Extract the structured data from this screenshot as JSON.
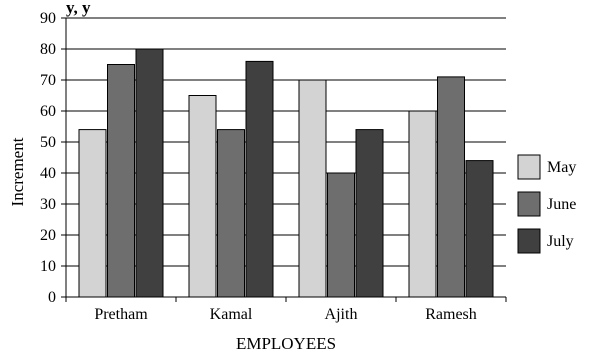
{
  "chart_data": {
    "type": "bar",
    "title": "",
    "top_fragment": "y,         y",
    "categories": [
      "Pretham",
      "Kamal",
      "Ajith",
      "Ramesh"
    ],
    "series": [
      {
        "name": "May",
        "values": [
          54,
          65,
          70,
          60
        ],
        "color": "#d3d3d3"
      },
      {
        "name": "June",
        "values": [
          75,
          54,
          40,
          71
        ],
        "color": "#6e6e6e"
      },
      {
        "name": "July",
        "values": [
          80,
          76,
          54,
          44
        ],
        "color": "#404040"
      }
    ],
    "xlabel": "EMPLOYEES",
    "ylabel": "Increment",
    "ylim": [
      0,
      90
    ],
    "yticks": [
      0,
      10,
      20,
      30,
      40,
      50,
      60,
      70,
      80,
      90
    ],
    "grid": true,
    "legend_position": "right"
  }
}
